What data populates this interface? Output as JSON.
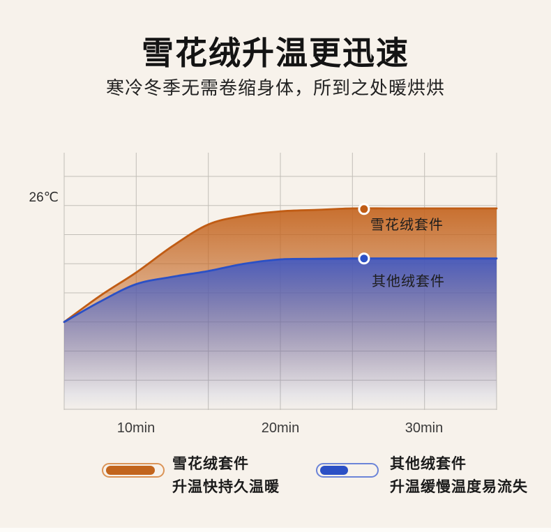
{
  "header": {
    "title": "雪花绒升温更迅速",
    "subtitle": "寒冷冬季无需卷缩身体，所到之处暖烘烘"
  },
  "chart_data": {
    "type": "area",
    "title": "雪花绒升温更迅速",
    "grid": true,
    "legend_position": "bottom",
    "x_axis": {
      "unit": "min",
      "ticks": [
        "10min",
        "20min",
        "30min"
      ],
      "tick_values": [
        10,
        20,
        30
      ],
      "range": [
        5,
        35
      ],
      "gridline_step_min": 5
    },
    "y_axis": {
      "labels": [
        "26℃"
      ],
      "label_value": 26,
      "gridline_step_c": 1,
      "note": "only the 26℃ level is labeled; other values estimated from gridlines"
    },
    "series": [
      {
        "name": "雪花绒套件",
        "tagline": "升温快持久温暖",
        "color": "#C05C14",
        "fill_top": "rgba(196,101,32,0.92)",
        "fill_bottom": "rgba(196,101,32,0)",
        "marker": {
          "t": 25.8,
          "temp_c": 25.88
        },
        "t_min": [
          5,
          7.5,
          10,
          12.5,
          15,
          17.5,
          20,
          22.5,
          25,
          27.5,
          30,
          32.5,
          35
        ],
        "temp_c": [
          22.0,
          22.9,
          23.7,
          24.6,
          25.35,
          25.65,
          25.8,
          25.85,
          25.9,
          25.9,
          25.9,
          25.9,
          25.9
        ]
      },
      {
        "name": "其他绒套件",
        "tagline": "升温缓慢温度易流失",
        "color": "#2B50C5",
        "fill_top": "rgba(58,86,199,0.88)",
        "fill_bottom": "rgba(96,120,205,0)",
        "marker": {
          "t": 25.8,
          "temp_c": 24.18
        },
        "t_min": [
          5,
          7.5,
          10,
          12.5,
          15,
          17.5,
          20,
          22.5,
          25,
          27.5,
          30,
          32.5,
          35
        ],
        "temp_c": [
          22.0,
          22.7,
          23.3,
          23.55,
          23.75,
          24.0,
          24.15,
          24.17,
          24.18,
          24.18,
          24.18,
          24.18,
          24.18
        ]
      }
    ]
  }
}
